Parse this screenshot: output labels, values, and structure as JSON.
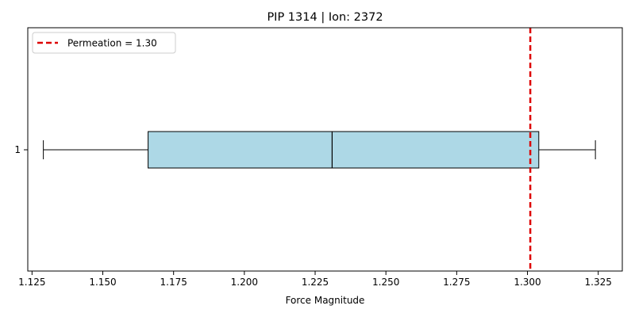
{
  "chart_data": {
    "type": "boxplot",
    "title": "PIP 1314 | Ion: 2372",
    "xlabel": "Force Magnitude",
    "ylabel": "",
    "orientation": "horizontal",
    "xlim": [
      1.1235,
      1.3335
    ],
    "xticks": [
      1.125,
      1.15,
      1.175,
      1.2,
      1.225,
      1.25,
      1.275,
      1.3,
      1.325
    ],
    "xtick_labels": [
      "1.125",
      "1.150",
      "1.175",
      "1.200",
      "1.225",
      "1.250",
      "1.275",
      "1.300",
      "1.325"
    ],
    "categories": [
      "1"
    ],
    "boxes": [
      {
        "category": "1",
        "whisker_low": 1.129,
        "q1": 1.166,
        "median": 1.231,
        "q3": 1.304,
        "whisker_high": 1.324
      }
    ],
    "reference_line": {
      "x": 1.301,
      "label": "Permeation = 1.30",
      "color": "#dd0000",
      "style": "dashed"
    },
    "box_fill": "#add8e6",
    "grid": false,
    "legend": {
      "position": "top-left"
    }
  }
}
